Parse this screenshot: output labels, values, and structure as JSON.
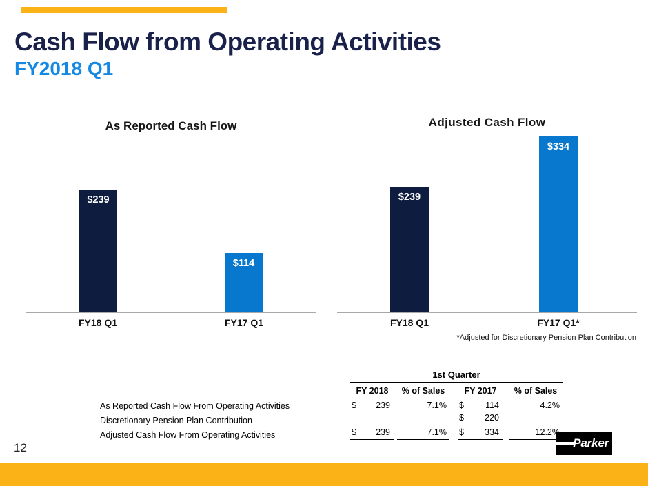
{
  "header": {
    "title": "Cash Flow from Operating Activities",
    "subtitle": "FY2018 Q1"
  },
  "chart_data": [
    {
      "type": "bar",
      "title": "As Reported Cash Flow",
      "categories": [
        "FY18 Q1",
        "FY17 Q1"
      ],
      "values": [
        239,
        114
      ],
      "bar_labels": [
        "$239",
        "$114"
      ],
      "bar_colors": [
        "#0D1C3F",
        "#0878CE"
      ],
      "ylim": [
        0,
        385
      ],
      "grid": false,
      "legend": false,
      "axes": "x-axis baseline only, no y-axis ticks"
    },
    {
      "type": "bar",
      "title": "Adjusted Cash Flow",
      "categories": [
        "FY18 Q1",
        "FY17 Q1*"
      ],
      "values": [
        239,
        334
      ],
      "bar_labels": [
        "$239",
        "$334"
      ],
      "bar_colors": [
        "#0D1C3F",
        "#0878CE"
      ],
      "footnote": "*Adjusted for Discretionary Pension Plan Contribution",
      "ylim": [
        0,
        378
      ],
      "grid": false,
      "legend": false,
      "axes": "x-axis baseline only, no y-axis ticks"
    },
    {
      "type": "table",
      "group_header": "1st Quarter",
      "columns": [
        "FY 2018",
        "% of Sales",
        "FY 2017",
        "% of Sales"
      ],
      "rows": [
        [
          "As Reported Cash Flow From Operating Activities",
          "$ 239",
          "7.1%",
          "$ 114",
          "4.2%"
        ],
        [
          "Discretionary Pension Plan Contribution",
          "",
          "",
          "$ 220",
          ""
        ],
        [
          "Adjusted Cash Flow From Operating Activities",
          "$ 239",
          "7.1%",
          "$ 334",
          "12.2%"
        ]
      ]
    }
  ],
  "table": {
    "group_header": "1st Quarter",
    "columns": [
      "FY 2018",
      "% of Sales",
      "FY 2017",
      "% of Sales"
    ],
    "rows": [
      {
        "label": "As Reported Cash Flow From Operating Activities",
        "cells": [
          {
            "currency": "$",
            "value": "239"
          },
          {
            "value": "7.1%"
          },
          {
            "currency": "$",
            "value": "114"
          },
          {
            "value": "4.2%"
          }
        ]
      },
      {
        "label": "Discretionary Pension Plan Contribution",
        "cells": [
          {
            "currency": "",
            "value": ""
          },
          {
            "value": ""
          },
          {
            "currency": "$",
            "value": "220"
          },
          {
            "value": ""
          }
        ]
      },
      {
        "label": "Adjusted Cash Flow From Operating Activities",
        "cells": [
          {
            "currency": "$",
            "value": "239"
          },
          {
            "value": "7.1%"
          },
          {
            "currency": "$",
            "value": "334"
          },
          {
            "value": "12.2%"
          }
        ]
      }
    ]
  },
  "footer": {
    "page_number": "12",
    "logo_text": "Parker"
  },
  "colors": {
    "accent_yellow": "#FBB216",
    "title_navy": "#19214B",
    "subtitle_blue": "#1588E3",
    "bar_dark_navy": "#0D1C3F",
    "bar_light_blue": "#0878CE",
    "axis_gray": "#A9A9A9"
  }
}
